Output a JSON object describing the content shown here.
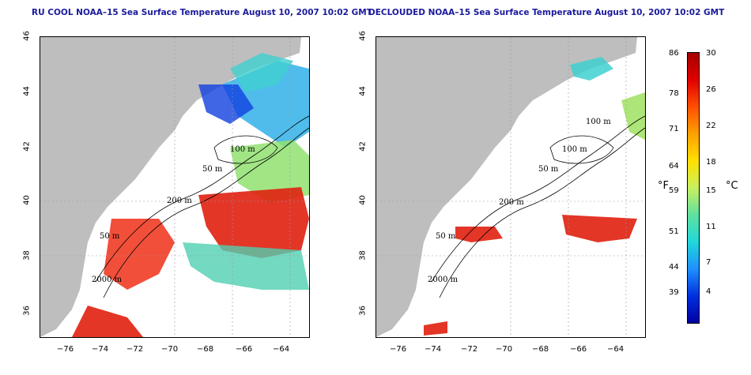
{
  "titles": {
    "left": "RU COOL NOAA–15 Sea Surface Temperature August 10, 2007 10:02 GMT",
    "right": "DECLOUDED NOAA–15 Sea Surface Temperature August 10, 2007 10:02 GMT"
  },
  "axes": {
    "lon_ticks": [
      "−76",
      "−74",
      "−72",
      "−70",
      "−68",
      "−66",
      "−64"
    ],
    "lat_ticks": [
      "46",
      "44",
      "42",
      "40",
      "38",
      "36"
    ]
  },
  "contour_labels": {
    "left": [
      "100 m",
      "50 m",
      "200 m",
      "50 m",
      "2000 m"
    ],
    "right": [
      "100 m",
      "100 m",
      "50 m",
      "200 m",
      "50 m",
      "2000 m"
    ]
  },
  "colorbar": {
    "fahrenheit_label": "°F",
    "celsius_label": "°C",
    "fahrenheit_ticks": [
      "86",
      "78",
      "71",
      "64",
      "59",
      "51",
      "44",
      "39"
    ],
    "celsius_ticks": [
      "30",
      "26",
      "22",
      "18",
      "15",
      "11",
      "7",
      "4"
    ]
  },
  "colors": {
    "land": "#bebebe",
    "title": "#1a1a9c",
    "warm": "#d82010",
    "cool": "#20c8e0"
  }
}
